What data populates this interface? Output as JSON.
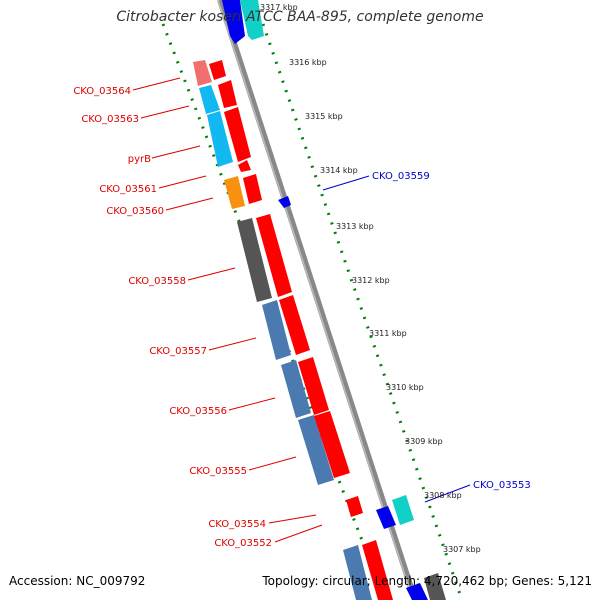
{
  "title": "Citrobacter koseri ATCC BAA-895, complete genome",
  "footer": {
    "accession": "Accession: NC_009792",
    "summary": "Topology: circular; Length: 4,720,462 bp; Genes: 5,121"
  },
  "colors": {
    "forward_strand": "#ff0000",
    "reverse_strand": "#0000ee",
    "backbone": "#888888",
    "tick_ring": "#008000",
    "steel_blue": "#4a7ab0",
    "light_blue": "#12b8f0",
    "orange": "#f89010",
    "salmon": "#f07070",
    "dark_gray": "#555555",
    "teal": "#10d0c8"
  },
  "scale_labels": [
    "3317 kbp",
    "3316 kbp",
    "3315 kbp",
    "3314 kbp",
    "3313 kbp",
    "3312 kbp",
    "3311 kbp",
    "3310 kbp",
    "3309 kbp",
    "3308 kbp",
    "3307 kbp"
  ],
  "left_labels": [
    "CKO_03564",
    "CKO_03563",
    "pyrB",
    "CKO_03561",
    "CKO_03560",
    "CKO_03558",
    "CKO_03557",
    "CKO_03556",
    "CKO_03555",
    "CKO_03554",
    "CKO_03552"
  ],
  "right_labels": [
    "CKO_03559",
    "CKO_03553"
  ]
}
